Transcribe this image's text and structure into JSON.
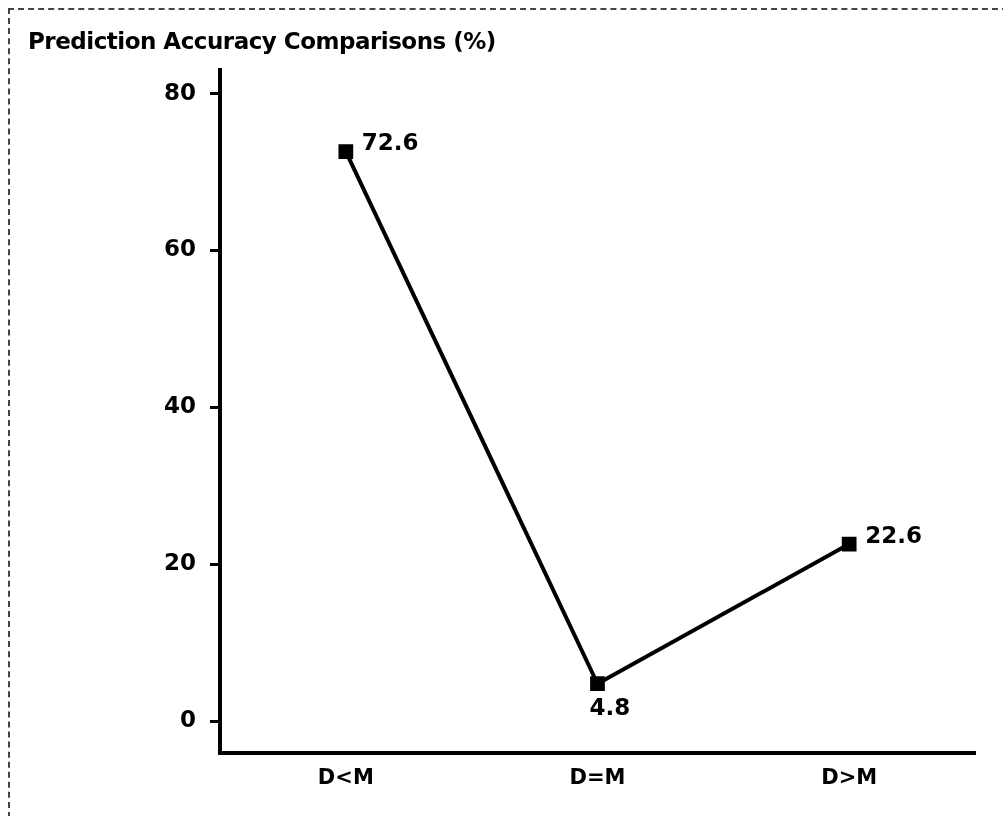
{
  "chart_data": {
    "type": "line",
    "title": "Prediction Accuracy Comparisons (%)",
    "categories": [
      "D<M",
      "D=M",
      "D>M"
    ],
    "series": [
      {
        "color": "#000000",
        "values": [
          72.6,
          4.8,
          22.6
        ]
      }
    ],
    "ylim": [
      -4,
      83
    ],
    "yticks": [
      0,
      20,
      40,
      60,
      80
    ],
    "grid": false,
    "legend": false,
    "marker": "square",
    "line_style": "solid",
    "data_labels": true
  }
}
